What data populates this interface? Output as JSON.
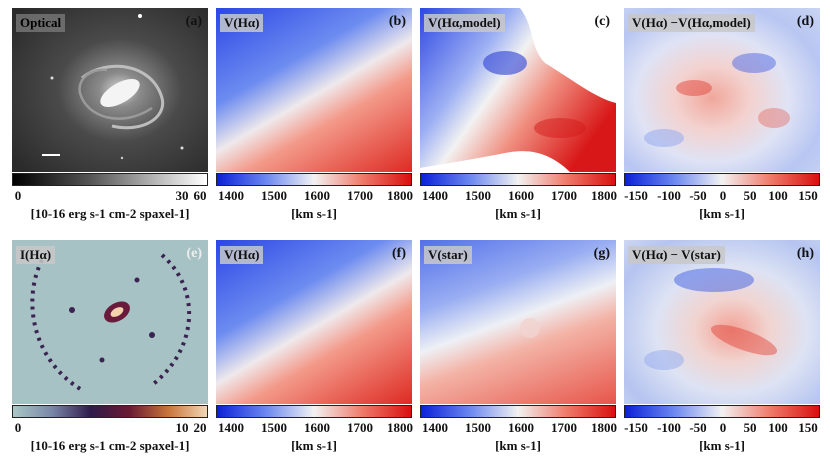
{
  "panels": [
    {
      "label": "Optical",
      "letter": "(a)",
      "colorbar": "gray",
      "ticks": [
        "0",
        "30",
        "60"
      ],
      "unit": "[10-16 erg s-1 cm-2 spaxel-1]"
    },
    {
      "label": "V(Hα)",
      "letter": "(b)",
      "colorbar": "velocity",
      "ticks": [
        "1400",
        "1500",
        "1600",
        "1700",
        "1800"
      ],
      "unit": "[km s-1]"
    },
    {
      "label": "V(Hα,model)",
      "letter": "(c)",
      "colorbar": "velocity",
      "ticks": [
        "1400",
        "1500",
        "1600",
        "1700",
        "1800"
      ],
      "unit": "[km s-1]"
    },
    {
      "label": "V(Hα) −V(Hα,model)",
      "letter": "(d)",
      "colorbar": "velocity",
      "ticks": [
        "-150",
        "-100",
        "-50",
        "0",
        "50",
        "100",
        "150"
      ],
      "unit": "[km s-1]"
    },
    {
      "label": "I(Hα)",
      "letter": "(e)",
      "colorbar": "heat",
      "ticks": [
        "0",
        "10",
        "20"
      ],
      "unit": "[10-16 erg s-1 cm-2 spaxel-1]"
    },
    {
      "label": "V(Hα)",
      "letter": "(f)",
      "colorbar": "velocity",
      "ticks": [
        "1400",
        "1500",
        "1600",
        "1700",
        "1800"
      ],
      "unit": "[km s-1]"
    },
    {
      "label": "V(star)",
      "letter": "(g)",
      "colorbar": "velocity",
      "ticks": [
        "1400",
        "1500",
        "1600",
        "1700",
        "1800"
      ],
      "unit": "[km s-1]"
    },
    {
      "label": "V(Hα) − V(star)",
      "letter": "(h)",
      "colorbar": "velocity",
      "ticks": [
        "-150",
        "-100",
        "-50",
        "0",
        "50",
        "100",
        "150"
      ],
      "unit": "[km s-1]"
    }
  ]
}
